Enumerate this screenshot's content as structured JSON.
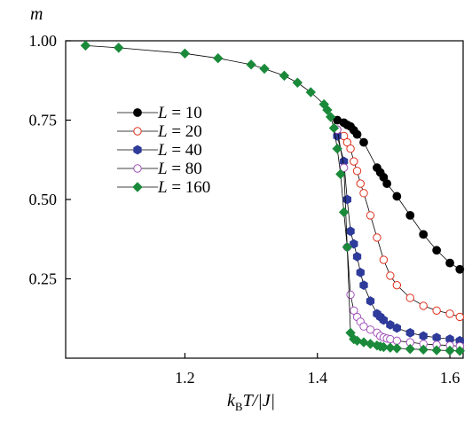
{
  "chart_data": {
    "type": "line",
    "title": "",
    "ylabel_parts": {
      "italic": "m"
    },
    "xlabel_parts": {
      "k": "k",
      "sub": "B",
      "rest": "T/|J|"
    },
    "xlim": [
      1.02,
      1.62
    ],
    "ylim": [
      0.0,
      1.0
    ],
    "xticks": [
      1.2,
      1.4,
      1.6
    ],
    "xtick_labels": [
      "1.2",
      "1.4",
      "1.6"
    ],
    "yticks": [
      0.25,
      0.5,
      0.75,
      1.0
    ],
    "ytick_labels": [
      "0.25",
      "0.50",
      "0.75",
      "1.00"
    ],
    "grid": false,
    "legend_position": "center-left",
    "series": [
      {
        "name_var": "L",
        "name_val": "= 10",
        "marker": "circle-filled",
        "color": "#000000",
        "x": [
          1.43,
          1.44,
          1.445,
          1.45,
          1.455,
          1.46,
          1.47,
          1.49,
          1.495,
          1.5,
          1.505,
          1.52,
          1.54,
          1.56,
          1.58,
          1.6,
          1.615
        ],
        "y": [
          0.75,
          0.742,
          0.735,
          0.73,
          0.718,
          0.705,
          0.68,
          0.6,
          0.585,
          0.57,
          0.55,
          0.51,
          0.45,
          0.39,
          0.34,
          0.3,
          0.28
        ]
      },
      {
        "name_var": "L",
        "name_val": "= 20",
        "marker": "circle-open",
        "color": "#e0301e",
        "x": [
          1.43,
          1.44,
          1.445,
          1.45,
          1.455,
          1.46,
          1.465,
          1.47,
          1.48,
          1.49,
          1.5,
          1.51,
          1.52,
          1.54,
          1.56,
          1.58,
          1.6,
          1.615
        ],
        "y": [
          0.72,
          0.7,
          0.68,
          0.66,
          0.62,
          0.59,
          0.55,
          0.52,
          0.45,
          0.38,
          0.31,
          0.26,
          0.23,
          0.19,
          0.165,
          0.15,
          0.14,
          0.13
        ]
      },
      {
        "name_var": "L",
        "name_val": "= 40",
        "marker": "hexagon-filled",
        "color": "#2e3b9a",
        "x": [
          1.43,
          1.44,
          1.445,
          1.45,
          1.455,
          1.46,
          1.465,
          1.47,
          1.48,
          1.49,
          1.495,
          1.5,
          1.51,
          1.52,
          1.54,
          1.56,
          1.58,
          1.6,
          1.615
        ],
        "y": [
          0.7,
          0.62,
          0.5,
          0.4,
          0.36,
          0.32,
          0.27,
          0.23,
          0.18,
          0.14,
          0.13,
          0.12,
          0.105,
          0.095,
          0.08,
          0.07,
          0.065,
          0.06,
          0.055
        ]
      },
      {
        "name_var": "L",
        "name_val": "= 80",
        "marker": "circle-open",
        "color": "#a050b8",
        "x": [
          1.43,
          1.44,
          1.445,
          1.45,
          1.455,
          1.46,
          1.465,
          1.47,
          1.48,
          1.49,
          1.495,
          1.5,
          1.505,
          1.51,
          1.52,
          1.54,
          1.56,
          1.58,
          1.6,
          1.615
        ],
        "y": [
          0.72,
          0.6,
          0.35,
          0.2,
          0.15,
          0.13,
          0.115,
          0.1,
          0.09,
          0.08,
          0.07,
          0.065,
          0.062,
          0.06,
          0.055,
          0.05,
          0.045,
          0.042,
          0.04,
          0.038
        ]
      },
      {
        "name_var": "L",
        "name_val": "= 160",
        "marker": "diamond-filled",
        "color": "#1a8a3a",
        "x": [
          1.05,
          1.1,
          1.2,
          1.25,
          1.3,
          1.32,
          1.35,
          1.37,
          1.39,
          1.41,
          1.415,
          1.42,
          1.425,
          1.43,
          1.435,
          1.44,
          1.445,
          1.45,
          1.455,
          1.46,
          1.47,
          1.48,
          1.49,
          1.495,
          1.5,
          1.51,
          1.52,
          1.54,
          1.56,
          1.58,
          1.6,
          1.615
        ],
        "y": [
          0.985,
          0.978,
          0.96,
          0.945,
          0.925,
          0.912,
          0.89,
          0.868,
          0.838,
          0.8,
          0.782,
          0.76,
          0.725,
          0.66,
          0.58,
          0.46,
          0.35,
          0.08,
          0.06,
          0.055,
          0.05,
          0.045,
          0.04,
          0.037,
          0.035,
          0.033,
          0.031,
          0.029,
          0.027,
          0.025,
          0.024,
          0.023
        ]
      }
    ]
  }
}
